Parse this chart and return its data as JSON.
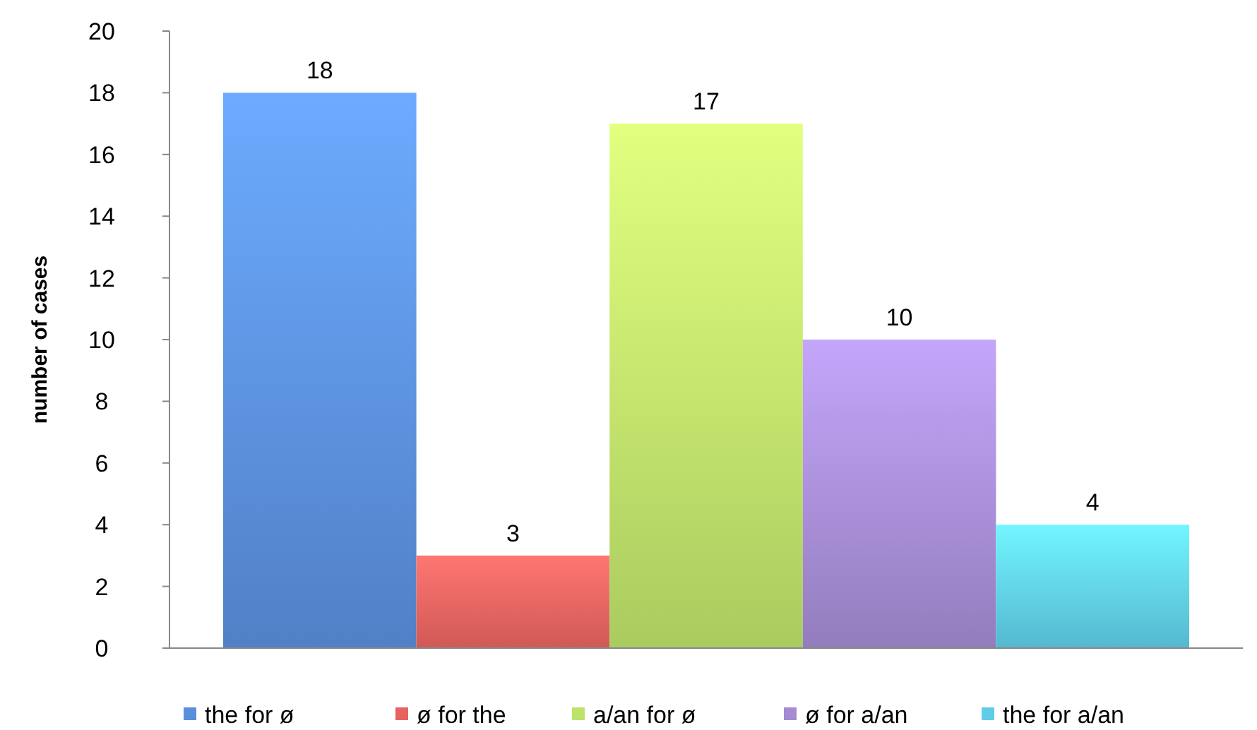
{
  "chart_data": {
    "type": "bar",
    "ylabel": "number of cases",
    "categories": [
      null
    ],
    "series": [
      {
        "name": "the for ø",
        "color": "#5a8fdc",
        "values": [
          18
        ]
      },
      {
        "name": "ø for the",
        "color": "#e8635f",
        "values": [
          3
        ]
      },
      {
        "name": "a/an for ø",
        "color": "#bde36a",
        "values": [
          17
        ]
      },
      {
        "name": "ø for a/an",
        "color": "#a48bd2",
        "values": [
          10
        ]
      },
      {
        "name": "the for a/an",
        "color": "#5fcde8",
        "values": [
          4
        ]
      }
    ],
    "ylim": [
      0,
      20
    ],
    "yticks": [
      0,
      2,
      4,
      6,
      8,
      10,
      12,
      14,
      16,
      18,
      20
    ],
    "data_labels": true,
    "legend": "bottom",
    "grid": false
  }
}
